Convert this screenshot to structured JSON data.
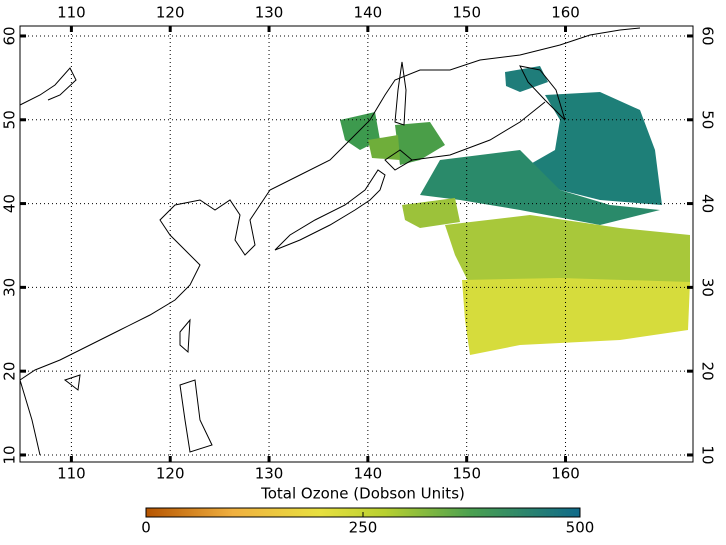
{
  "map": {
    "x_axis": {
      "lim": [
        104.8,
        172.9
      ],
      "ticks": [
        110,
        120,
        130,
        140,
        150,
        160
      ]
    },
    "y_axis": {
      "lim": [
        9.16,
        61.19
      ],
      "ticks": [
        10,
        20,
        30,
        40,
        50,
        60
      ]
    },
    "grid": true,
    "colorbar": {
      "title": "Total Ozone (Dobson Units)",
      "lim": [
        0,
        500
      ],
      "ticks": [
        0,
        250,
        500
      ]
    }
  }
}
